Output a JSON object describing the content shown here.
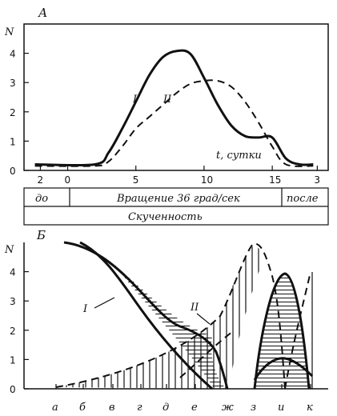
{
  "chart_data": [
    {
      "panel": "А",
      "type": "line",
      "ylabel": "N",
      "xlabel": "t, сутки",
      "y_ticks": [
        "0",
        "1",
        "2",
        "3",
        "4"
      ],
      "x_ticks": [
        "2",
        "0",
        "5",
        "10",
        "15",
        "3"
      ],
      "ylim": [
        0,
        5
      ],
      "series": [
        {
          "name": "I",
          "style": "solid",
          "points": [
            [
              -2.4,
              0.2
            ],
            [
              2,
              0.2
            ],
            [
              3,
              0.6
            ],
            [
              4,
              1.4
            ],
            [
              5,
              2.3
            ],
            [
              6,
              3.2
            ],
            [
              7,
              3.8
            ],
            [
              8,
              4.0
            ],
            [
              9,
              3.9
            ],
            [
              10,
              3.1
            ],
            [
              11,
              2.2
            ],
            [
              12,
              1.5
            ],
            [
              13,
              1.15
            ],
            [
              14,
              1.1
            ],
            [
              15,
              1.1
            ],
            [
              16,
              0.4
            ],
            [
              17,
              0.2
            ],
            [
              18,
              0.2
            ]
          ]
        },
        {
          "name": "II",
          "style": "dashed",
          "points": [
            [
              -2.4,
              0.15
            ],
            [
              2,
              0.15
            ],
            [
              3,
              0.3
            ],
            [
              4,
              0.8
            ],
            [
              5,
              1.4
            ],
            [
              6,
              1.8
            ],
            [
              7,
              2.2
            ],
            [
              8,
              2.6
            ],
            [
              9,
              2.9
            ],
            [
              10,
              3.0
            ],
            [
              11,
              3.0
            ],
            [
              12,
              2.8
            ],
            [
              13,
              2.3
            ],
            [
              14,
              1.6
            ],
            [
              15,
              0.8
            ],
            [
              16,
              0.2
            ],
            [
              18,
              0.15
            ]
          ]
        }
      ],
      "phases": [
        "до",
        "Вращение 36 град/сек",
        "после"
      ],
      "bottom_band": "Скученность"
    },
    {
      "panel": "Б",
      "type": "line",
      "ylabel": "N",
      "y_ticks": [
        "0",
        "1",
        "2",
        "3",
        "4"
      ],
      "x_categories": [
        "а",
        "б",
        "в",
        "г",
        "д",
        "е",
        "ж",
        "з",
        "и",
        "к"
      ],
      "ylim": [
        0,
        5
      ],
      "series_labels": [
        "I",
        "II"
      ]
    }
  ]
}
